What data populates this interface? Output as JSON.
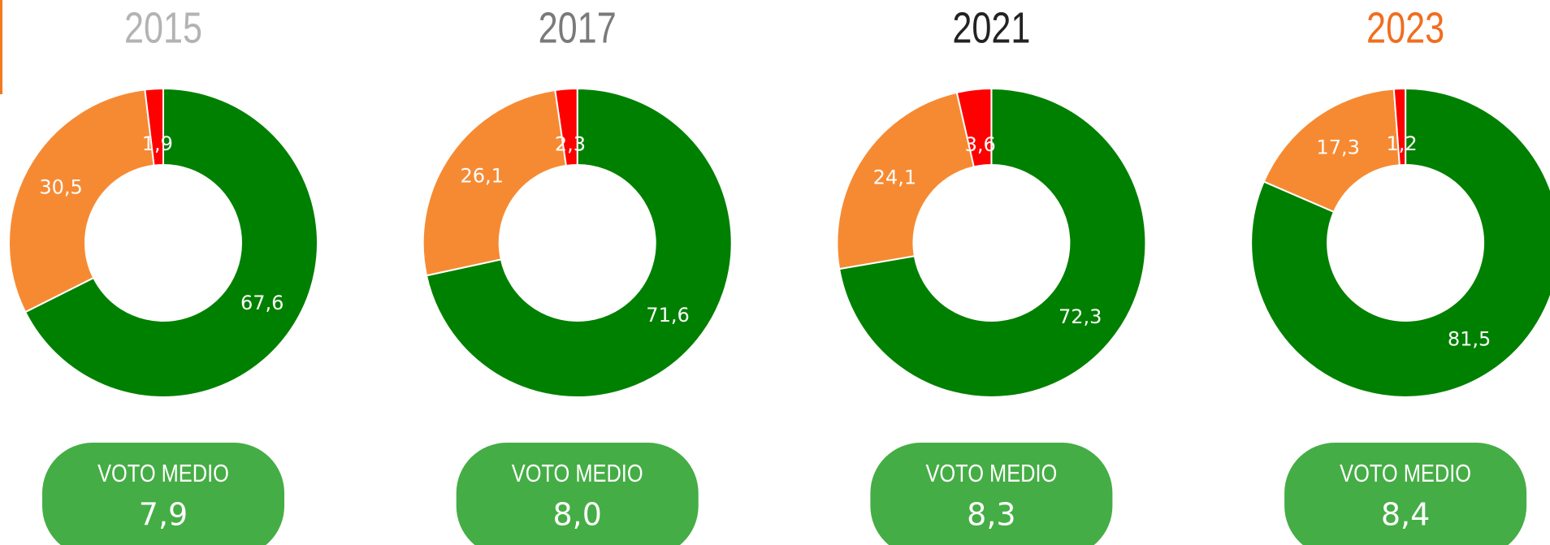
{
  "chart_data": [
    {
      "type": "donut",
      "title": "2015",
      "title_color": "#b3b3b3",
      "values": [
        67.6,
        30.5,
        1.9
      ],
      "value_labels": [
        "67,6",
        "30,5",
        "1,9"
      ],
      "colors": [
        "#008000",
        "#f68a33",
        "#ff0000"
      ],
      "badge": {
        "title": "VOTO MEDIO",
        "text": "7,9"
      }
    },
    {
      "type": "donut",
      "title": "2017",
      "title_color": "#7a7a7a",
      "values": [
        71.6,
        26.1,
        2.3
      ],
      "value_labels": [
        "71,6",
        "26,1",
        "2,3"
      ],
      "colors": [
        "#008000",
        "#f68a33",
        "#ff0000"
      ],
      "badge": {
        "title": "VOTO MEDIO",
        "text": "8,0"
      }
    },
    {
      "type": "donut",
      "title": "2021",
      "title_color": "#222222",
      "values": [
        72.3,
        24.1,
        3.6
      ],
      "value_labels": [
        "72,3",
        "24,1",
        "3,6"
      ],
      "colors": [
        "#008000",
        "#f68a33",
        "#ff0000"
      ],
      "badge": {
        "title": "VOTO MEDIO",
        "text": "8,3"
      }
    },
    {
      "type": "donut",
      "title": "2023",
      "title_color": "#f06e1e",
      "values": [
        81.5,
        17.3,
        1.2
      ],
      "value_labels": [
        "81,5",
        "17,3",
        "1,2"
      ],
      "colors": [
        "#008000",
        "#f68a33",
        "#ff0000"
      ],
      "badge": {
        "title": "VOTO MEDIO",
        "text": "8,4"
      }
    }
  ]
}
